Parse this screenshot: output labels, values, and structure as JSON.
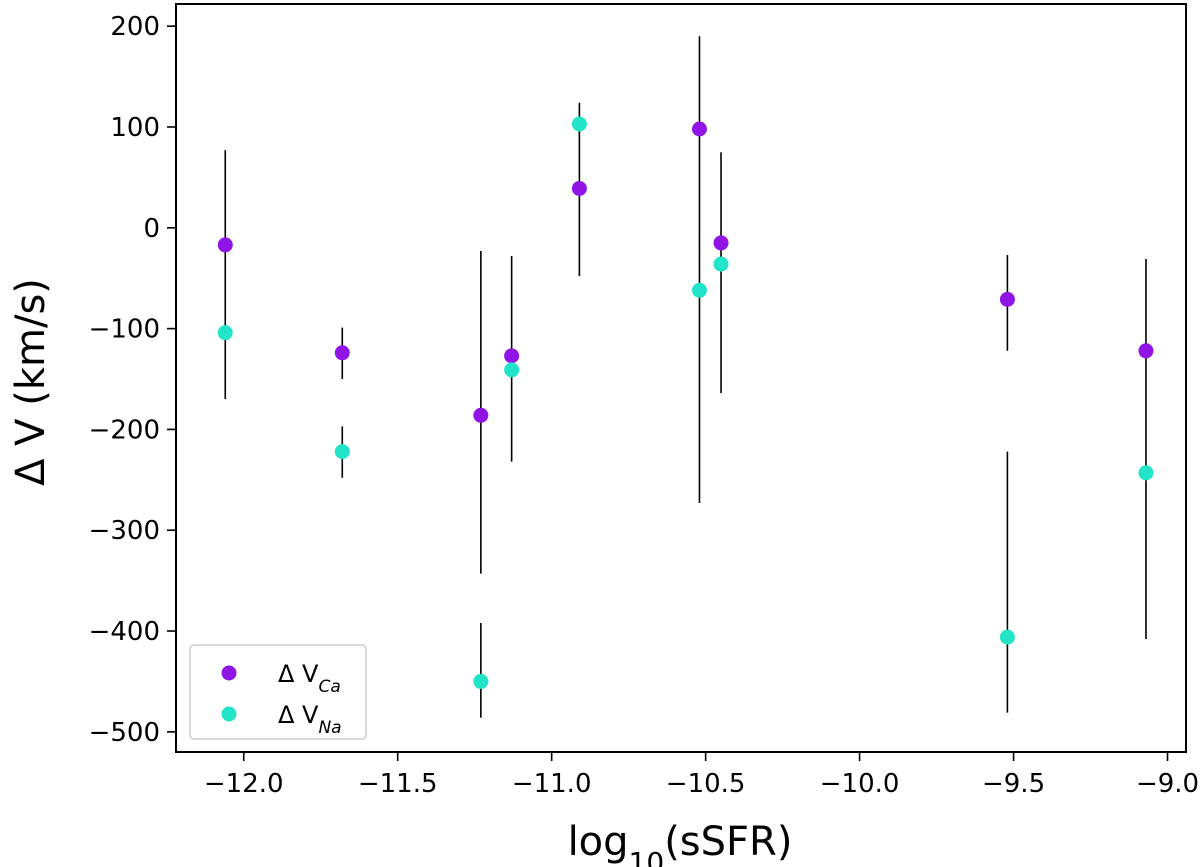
{
  "chart_data": {
    "type": "scatter",
    "title": "",
    "xlabel": {
      "main": "log",
      "sub": "10",
      "tail": "(sSFR)"
    },
    "ylabel": "Δ V (km/s)",
    "xlim": [
      -12.22,
      -8.94
    ],
    "ylim": [
      -520,
      222
    ],
    "xticks": [
      -12.0,
      -11.5,
      -11.0,
      -10.5,
      -10.0,
      -9.5,
      -9.0
    ],
    "xtick_labels": [
      "−12.0",
      "−11.5",
      "−11.0",
      "−10.5",
      "−10.0",
      "−9.5",
      "−9.0"
    ],
    "yticks": [
      200,
      100,
      0,
      -100,
      -200,
      -300,
      -400,
      -500
    ],
    "ytick_labels": [
      "200",
      "100",
      "0",
      "−100",
      "−200",
      "−300",
      "−400",
      "−500"
    ],
    "grid": false,
    "legend_position": "bottom-left",
    "series": [
      {
        "name": {
          "main": "Δ V",
          "sub": "Ca"
        },
        "color": "#9014e6",
        "points": [
          {
            "x": -12.06,
            "y": -17,
            "err_low": -170,
            "err_high": 77
          },
          {
            "x": -11.68,
            "y": -124,
            "err_low": -150,
            "err_high": -99
          },
          {
            "x": -11.23,
            "y": -186,
            "err_low": -343,
            "err_high": -23
          },
          {
            "x": -11.13,
            "y": -127,
            "err_low": -232,
            "err_high": -28
          },
          {
            "x": -10.91,
            "y": 39,
            "err_low": -48,
            "err_high": 124
          },
          {
            "x": -10.52,
            "y": 98,
            "err_low": -273,
            "err_high": 190
          },
          {
            "x": -10.45,
            "y": -15,
            "err_low": -164,
            "err_high": 75
          },
          {
            "x": -9.52,
            "y": -71,
            "err_low": -122,
            "err_high": -27
          },
          {
            "x": -9.07,
            "y": -122,
            "err_low": -408,
            "err_high": -31
          }
        ]
      },
      {
        "name": {
          "main": "Δ V",
          "sub": "Na"
        },
        "color": "#22e4c8",
        "points": [
          {
            "x": -12.06,
            "y": -104
          },
          {
            "x": -11.68,
            "y": -222,
            "err_low": -248,
            "err_high": -197
          },
          {
            "x": -11.23,
            "y": -450,
            "err_low": -486,
            "err_high": -392
          },
          {
            "x": -11.13,
            "y": -141
          },
          {
            "x": -10.91,
            "y": 103
          },
          {
            "x": -10.52,
            "y": -62
          },
          {
            "x": -10.45,
            "y": -36
          },
          {
            "x": -9.52,
            "y": -406,
            "err_low": -481,
            "err_high": -222
          },
          {
            "x": -9.07,
            "y": -243
          }
        ]
      }
    ]
  }
}
